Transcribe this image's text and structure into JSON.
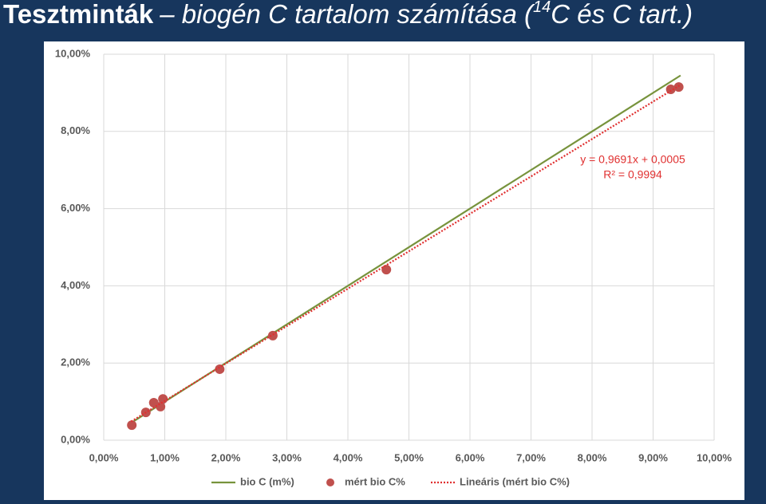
{
  "title": {
    "bold": "Tesztminták",
    "italic": "– biogén C tartalom számítása (",
    "superscript": "14",
    "italic_end": "C és C tart.)"
  },
  "chart_data": {
    "type": "scatter",
    "annotations": [
      "y = 0,9691x + 0,0005",
      "R² = 0,9994"
    ],
    "series": [
      {
        "name": "bio C (m%)",
        "kind": "line",
        "color": "#77933c",
        "x": [
          0.45,
          9.45
        ],
        "values": [
          0.45,
          9.45
        ]
      },
      {
        "name": "mért bio C%",
        "kind": "points",
        "color": "#c0504d",
        "x": [
          0.46,
          0.69,
          0.82,
          0.93,
          0.97,
          1.9,
          2.77,
          4.63,
          9.29,
          9.42
        ],
        "values": [
          0.39,
          0.72,
          0.97,
          0.87,
          1.07,
          1.84,
          2.71,
          4.42,
          9.09,
          9.15
        ]
      },
      {
        "name": "Lineáris (mért bio C%)",
        "kind": "dotted",
        "color": "#e03030",
        "x": [
          0.45,
          9.45
        ],
        "values": [
          0.486,
          9.208
        ]
      }
    ],
    "xlim": [
      0,
      10
    ],
    "ylim": [
      0,
      10
    ],
    "xticks": [
      {
        "value": 0,
        "label": "0,00%"
      },
      {
        "value": 1,
        "label": "1,00%"
      },
      {
        "value": 2,
        "label": "2,00%"
      },
      {
        "value": 3,
        "label": "3,00%"
      },
      {
        "value": 4,
        "label": "4,00%"
      },
      {
        "value": 5,
        "label": "5,00%"
      },
      {
        "value": 6,
        "label": "6,00%"
      },
      {
        "value": 7,
        "label": "7,00%"
      },
      {
        "value": 8,
        "label": "8,00%"
      },
      {
        "value": 9,
        "label": "9,00%"
      },
      {
        "value": 10,
        "label": "10,00%"
      }
    ],
    "yticks": [
      {
        "value": 0,
        "label": "0,00%"
      },
      {
        "value": 2,
        "label": "2,00%"
      },
      {
        "value": 4,
        "label": "4,00%"
      },
      {
        "value": 6,
        "label": "6,00%"
      },
      {
        "value": 8,
        "label": "8,00%"
      },
      {
        "value": 10,
        "label": "10,00%"
      }
    ],
    "grid": true,
    "legend": "bottom"
  }
}
